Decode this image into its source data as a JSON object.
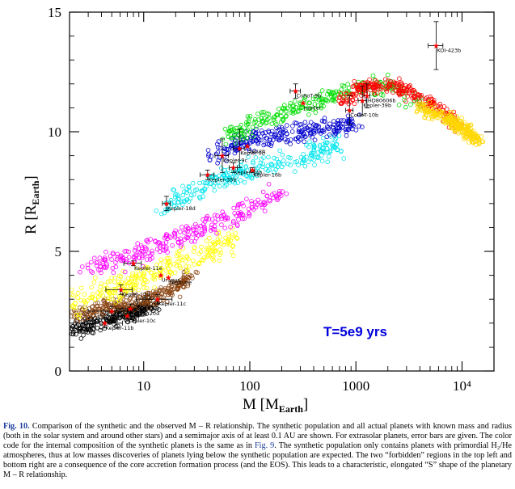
{
  "chart_data": {
    "type": "scatter",
    "xscale": "log",
    "xlim": [
      2,
      20000
    ],
    "ylim": [
      0,
      15
    ],
    "xticks": [
      10,
      100,
      1000,
      10000
    ],
    "xtick_labels": [
      "10",
      "100",
      "1000",
      "10⁴"
    ],
    "yticks": [
      0,
      5,
      10,
      15
    ],
    "ytick_labels": [
      "0",
      "5",
      "10",
      "15"
    ],
    "xlabel": "M  [M",
    "xlabel_sub": "Earth",
    "xlabel_end": "]",
    "ylabel": "R  [R",
    "ylabel_sub": "Earth",
    "ylabel_end": "]",
    "annotation": "T=5e9 yrs",
    "annotation_color": "#0000dd",
    "synthetic_populations": [
      {
        "color": "#000000",
        "band": [
          [
            1.8,
            1.6
          ],
          [
            3,
            1.9
          ],
          [
            5,
            2.2
          ],
          [
            8,
            2.5
          ],
          [
            12,
            2.8
          ]
        ],
        "spread": 0.35
      },
      {
        "color": "#8b4513",
        "band": [
          [
            2,
            2.3
          ],
          [
            4,
            2.6
          ],
          [
            8,
            2.9
          ],
          [
            15,
            3.2
          ],
          [
            30,
            4.0
          ]
        ],
        "spread": 0.35
      },
      {
        "color": "#ffff00",
        "band": [
          [
            2,
            2.8
          ],
          [
            5,
            3.4
          ],
          [
            10,
            3.9
          ],
          [
            20,
            4.5
          ],
          [
            40,
            5.0
          ],
          [
            70,
            5.5
          ]
        ],
        "spread": 0.55
      },
      {
        "color": "#ff00ff",
        "band": [
          [
            3,
            4.3
          ],
          [
            8,
            4.8
          ],
          [
            15,
            5.3
          ],
          [
            30,
            5.8
          ],
          [
            60,
            6.4
          ],
          [
            100,
            6.9
          ],
          [
            200,
            7.4
          ]
        ],
        "spread": 0.45
      },
      {
        "color": "#00e5ee",
        "band": [
          [
            15,
            6.8
          ],
          [
            30,
            7.6
          ],
          [
            60,
            8.1
          ],
          [
            100,
            8.4
          ],
          [
            200,
            8.7
          ],
          [
            400,
            9.0
          ],
          [
            700,
            9.6
          ]
        ],
        "spread": 0.45
      },
      {
        "color": "#0000cd",
        "band": [
          [
            40,
            8.9
          ],
          [
            80,
            9.5
          ],
          [
            150,
            9.8
          ],
          [
            300,
            10.0
          ],
          [
            600,
            10.2
          ],
          [
            1000,
            10.4
          ]
        ],
        "spread": 0.45
      },
      {
        "color": "#00dd00",
        "band": [
          [
            60,
            9.8
          ],
          [
            120,
            10.4
          ],
          [
            250,
            10.9
          ],
          [
            500,
            11.4
          ],
          [
            1000,
            11.8
          ],
          [
            2000,
            11.9
          ],
          [
            4000,
            11.2
          ]
        ],
        "spread": 0.4
      },
      {
        "color": "#ff0000",
        "band": [
          [
            700,
            11.2
          ],
          [
            1200,
            11.9
          ],
          [
            2000,
            12.0
          ],
          [
            3500,
            11.6
          ],
          [
            6000,
            10.9
          ],
          [
            10000,
            10.2
          ]
        ],
        "spread": 0.3
      },
      {
        "color": "#ffd700",
        "band": [
          [
            4000,
            11.0
          ],
          [
            7000,
            10.6
          ],
          [
            10000,
            10.2
          ],
          [
            14000,
            9.6
          ]
        ],
        "spread": 0.25
      }
    ],
    "observed_planets": [
      {
        "name": "KOI-423b",
        "m": 5700,
        "r": 13.6,
        "xerr": [
          900,
          900
        ],
        "yerr": [
          1.0,
          1.0
        ]
      },
      {
        "name": "CoRoT-9b",
        "m": 270,
        "r": 11.7,
        "xerr": [
          30,
          30
        ],
        "yerr": [
          0.3,
          0.3
        ]
      },
      {
        "name": "Jupiter",
        "m": 318,
        "r": 11.2,
        "xerr": [
          0,
          0
        ],
        "yerr": [
          0,
          0
        ]
      },
      {
        "name": "HD80606b",
        "m": 1270,
        "r": 11.5,
        "xerr": [
          80,
          80
        ],
        "yerr": [
          0.5,
          0.5
        ]
      },
      {
        "name": "Kepler-39b",
        "m": 1150,
        "r": 11.3,
        "xerr": [
          100,
          100
        ],
        "yerr": [
          0.6,
          0.6
        ]
      },
      {
        "name": "CoRoT-10b",
        "m": 870,
        "r": 10.9,
        "xerr": [
          70,
          70
        ],
        "yerr": [
          0.6,
          0.6
        ]
      },
      {
        "name": "Saturn",
        "m": 95,
        "r": 9.4,
        "xerr": [
          0,
          0
        ],
        "yerr": [
          0,
          0
        ]
      },
      {
        "name": "Kepler-9b",
        "m": 80,
        "r": 9.3,
        "xerr": [
          10,
          10
        ],
        "yerr": [
          0.8,
          0.8
        ]
      },
      {
        "name": "Kepler-9c",
        "m": 55,
        "r": 9.0,
        "xerr": [
          8,
          8
        ],
        "yerr": [
          0.7,
          0.7
        ]
      },
      {
        "name": "Kepler-34b",
        "m": 70,
        "r": 8.5,
        "xerr": [
          6,
          6
        ],
        "yerr": [
          0.2,
          0.2
        ]
      },
      {
        "name": "Kepler-16b",
        "m": 106,
        "r": 8.4,
        "xerr": [
          5,
          5
        ],
        "yerr": [
          0.1,
          0.1
        ]
      },
      {
        "name": "Kepler-35b",
        "m": 40,
        "r": 8.2,
        "xerr": [
          6,
          6
        ],
        "yerr": [
          0.2,
          0.2
        ]
      },
      {
        "name": "Kepler-18d",
        "m": 16.4,
        "r": 7.0,
        "xerr": [
          1.4,
          1.4
        ],
        "yerr": [
          0.3,
          0.3
        ]
      },
      {
        "name": "Kepler-11e",
        "m": 8.0,
        "r": 4.5,
        "xerr": [
          1.5,
          1.5
        ],
        "yerr": [
          0.1,
          0.1
        ]
      },
      {
        "name": "Uranus",
        "m": 14.5,
        "r": 4.0,
        "xerr": [
          0,
          0
        ],
        "yerr": [
          0,
          0
        ]
      },
      {
        "name": "Neptune",
        "m": 17.1,
        "r": 3.9,
        "xerr": [
          0,
          0
        ],
        "yerr": [
          0,
          0
        ]
      },
      {
        "name": "Kepler-11d",
        "m": 6.1,
        "r": 3.4,
        "xerr": [
          1.7,
          1.7
        ],
        "yerr": [
          0.2,
          0.2
        ]
      },
      {
        "name": "Kepler-11c",
        "m": 13.5,
        "r": 3.0,
        "xerr": [
          5,
          5
        ],
        "yerr": [
          0.2,
          0.2
        ]
      },
      {
        "name": "Kepler-20d",
        "m": 7.5,
        "r": 2.6,
        "xerr": [
          2,
          2
        ],
        "yerr": [
          0.2,
          0.2
        ]
      },
      {
        "name": "Kepler-11b",
        "m": 4.3,
        "r": 2.0,
        "xerr": [
          2,
          2
        ],
        "yerr": [
          0.2,
          0.2
        ]
      },
      {
        "name": "Kepler-10c",
        "m": 7.0,
        "r": 2.3,
        "xerr": [
          2,
          2
        ],
        "yerr": [
          0.1,
          0.1
        ]
      },
      {
        "name": "",
        "m": 5.0,
        "r": 2.5,
        "xerr": [
          2,
          2
        ],
        "yerr": [
          0.2,
          0.2
        ]
      }
    ]
  },
  "caption": {
    "label": "Fig. 10.",
    "fig_ref": "Fig. 9",
    "part1": " Comparison of the synthetic and the observed M – R relationship. The synthetic population and all actual planets with known mass and radius (both in the solar system and around other stars) and a semimajor axis of at least 0.1 AU are shown. For extrasolar planets, error bars are given. The color code for the internal composition of the synthetic planets is the same as in ",
    "part2": ". The synthetic population only contains planets with primordial H₂/He atmospheres, thus at low masses discoveries of planets lying below the synthetic population are expected. The two “forbidden” regions in the top left and bottom right are a consequence of the core accretion formation process (and the EOS). This leads to a characteristic, elongated “S” shape of the planetary M – R relationship."
  }
}
